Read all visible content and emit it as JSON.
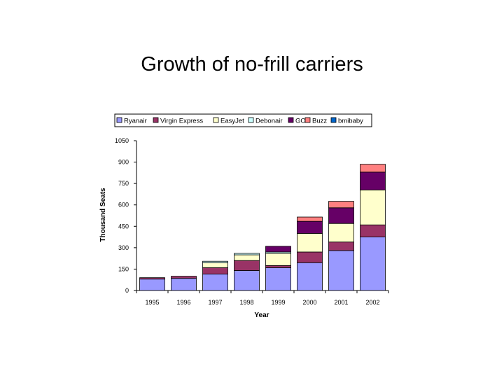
{
  "slide": {
    "title": "Growth of no-frill carriers"
  },
  "chart_data": {
    "type": "bar",
    "stacked": true,
    "title": "",
    "xlabel": "Year",
    "ylabel": "Thousand Seats",
    "categories": [
      "1995",
      "1996",
      "1997",
      "1998",
      "1999",
      "2000",
      "2001",
      "2002"
    ],
    "yticks": [
      "0",
      "150",
      "300",
      "450",
      "600",
      "750",
      "900",
      "1050"
    ],
    "ylim": [
      0,
      1050
    ],
    "legend_position": "top",
    "grid": false,
    "series": [
      {
        "name": "Ryanair",
        "color": "#9999ff",
        "values": [
          80,
          85,
          115,
          140,
          160,
          195,
          280,
          375
        ]
      },
      {
        "name": "Virgin Express",
        "color": "#993366",
        "values": [
          10,
          15,
          45,
          70,
          15,
          75,
          60,
          85
        ]
      },
      {
        "name": "EasyJet",
        "color": "#ffffcc",
        "values": [
          0,
          0,
          35,
          40,
          85,
          130,
          130,
          245
        ]
      },
      {
        "name": "Debonair",
        "color": "#ccffff",
        "values": [
          0,
          0,
          10,
          10,
          10,
          0,
          0,
          0
        ]
      },
      {
        "name": "GO",
        "color": "#660066",
        "values": [
          0,
          0,
          0,
          0,
          40,
          85,
          110,
          125
        ]
      },
      {
        "name": "Buzz",
        "color": "#ff8080",
        "values": [
          0,
          0,
          0,
          0,
          0,
          30,
          45,
          55
        ]
      },
      {
        "name": "bmibaby",
        "color": "#0066cc",
        "values": [
          0,
          0,
          0,
          0,
          0,
          0,
          0,
          0
        ]
      }
    ]
  }
}
